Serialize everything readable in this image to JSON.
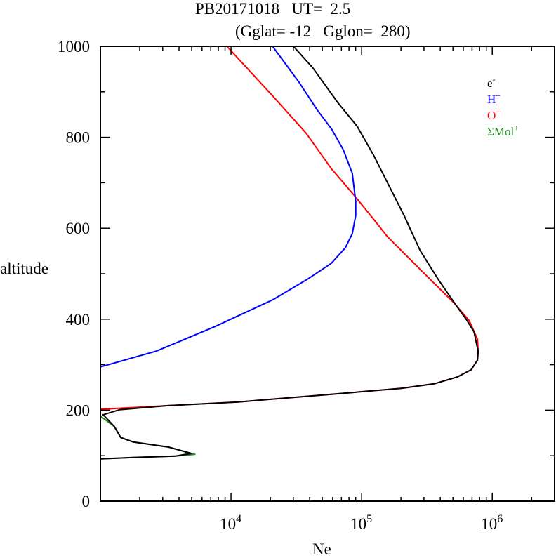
{
  "chart_data": {
    "type": "line",
    "title_line1": "PB20171018   UT=  2.5",
    "title_line2": "(Gglat= -12   Gglon=  280)",
    "xlabel": "Ne",
    "ylabel": "altitude",
    "xscale": "log",
    "xlim": [
      1000,
      3000000
    ],
    "ylim": [
      0,
      1000
    ],
    "x_ticks": [
      {
        "value": 10000,
        "base": "10",
        "exp": "4"
      },
      {
        "value": 100000,
        "base": "10",
        "exp": "5"
      },
      {
        "value": 1000000,
        "base": "10",
        "exp": "6"
      }
    ],
    "y_ticks": [
      "0",
      "200",
      "400",
      "600",
      "800",
      "1000"
    ],
    "y_tick_values": [
      0,
      200,
      400,
      600,
      800,
      1000
    ],
    "legend_position": "top-right",
    "series": [
      {
        "name": "e-",
        "label_base": "e",
        "label_sup": "-",
        "color": "#000000",
        "points": [
          [
            30070,
            1000
          ],
          [
            42460,
            952
          ],
          [
            66200,
            875
          ],
          [
            92400,
            824
          ],
          [
            122800,
            762
          ],
          [
            157100,
            701
          ],
          [
            211300,
            628
          ],
          [
            280500,
            551
          ],
          [
            391000,
            485
          ],
          [
            539000,
            427
          ],
          [
            641000,
            397
          ],
          [
            725000,
            372
          ],
          [
            780000,
            330
          ],
          [
            771000,
            310
          ],
          [
            690000,
            289
          ],
          [
            539000,
            273
          ],
          [
            359000,
            258
          ],
          [
            201000,
            248
          ],
          [
            58600,
            235
          ],
          [
            11350,
            218
          ],
          [
            3310,
            210
          ],
          [
            1400,
            201
          ],
          [
            1050,
            190
          ],
          [
            1090,
            185
          ],
          [
            1280,
            164
          ],
          [
            1430,
            140
          ],
          [
            1790,
            130
          ],
          [
            3310,
            119
          ],
          [
            4970,
            105
          ],
          [
            3740,
            99
          ],
          [
            1790,
            96
          ],
          [
            1000,
            93
          ]
        ]
      },
      {
        "name": "H+",
        "label_base": "H",
        "label_sup": "+",
        "color": "#0000ff",
        "points": [
          [
            20800,
            1000
          ],
          [
            25900,
            963
          ],
          [
            33200,
            921
          ],
          [
            45700,
            860
          ],
          [
            58600,
            819
          ],
          [
            72300,
            773
          ],
          [
            84800,
            721
          ],
          [
            90100,
            659
          ],
          [
            90100,
            628
          ],
          [
            84800,
            588
          ],
          [
            75000,
            557
          ],
          [
            58600,
            523
          ],
          [
            39000,
            489
          ],
          [
            21000,
            443
          ],
          [
            7550,
            384
          ],
          [
            2680,
            330
          ],
          [
            1000,
            295
          ]
        ]
      },
      {
        "name": "O+",
        "label_base": "O",
        "label_sup": "+",
        "color": "#ff0000",
        "points": [
          [
            9310,
            1000
          ],
          [
            11780,
            968
          ],
          [
            21000,
            890
          ],
          [
            37600,
            809
          ],
          [
            58600,
            731
          ],
          [
            89100,
            670
          ],
          [
            128900,
            613
          ],
          [
            157000,
            582
          ],
          [
            291000,
            505
          ],
          [
            501000,
            438
          ],
          [
            665000,
            397
          ],
          [
            771000,
            356
          ],
          [
            780000,
            330
          ],
          [
            771000,
            310
          ],
          [
            690000,
            289
          ],
          [
            539000,
            273
          ],
          [
            359000,
            258
          ],
          [
            201000,
            248
          ],
          [
            58600,
            235
          ],
          [
            11350,
            218
          ],
          [
            3310,
            210
          ],
          [
            1000,
            202
          ]
        ]
      },
      {
        "name": "ΣMol+",
        "label_base": "ΣMol",
        "label_sup": "+",
        "color": "#228b22",
        "points": [
          [
            1000,
            187
          ],
          [
            1280,
            164
          ],
          [
            1430,
            140
          ],
          [
            1790,
            130
          ],
          [
            3310,
            119
          ],
          [
            5290,
            103
          ],
          [
            3740,
            99
          ],
          [
            1790,
            96
          ],
          [
            1000,
            93
          ]
        ]
      }
    ]
  }
}
